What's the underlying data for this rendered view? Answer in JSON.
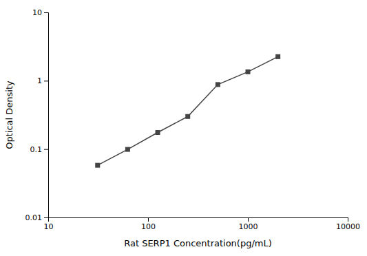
{
  "chart_data": {
    "type": "line",
    "x": [
      31.25,
      62.5,
      125,
      250,
      500,
      1000,
      2000
    ],
    "values": [
      0.058,
      0.099,
      0.175,
      0.3,
      0.88,
      1.35,
      2.25
    ],
    "xlabel": "Rat SERP1 Concentration(pg/mL)",
    "ylabel": "Optical Density",
    "xlim": [
      10,
      10000
    ],
    "ylim": [
      0.01,
      10
    ],
    "xticks": [
      10,
      100,
      1000,
      10000
    ],
    "yticks": [
      0.01,
      0.1,
      1,
      10
    ],
    "log": true,
    "grid": false,
    "color": "#444444",
    "marker": "square",
    "line_style": "solid"
  }
}
